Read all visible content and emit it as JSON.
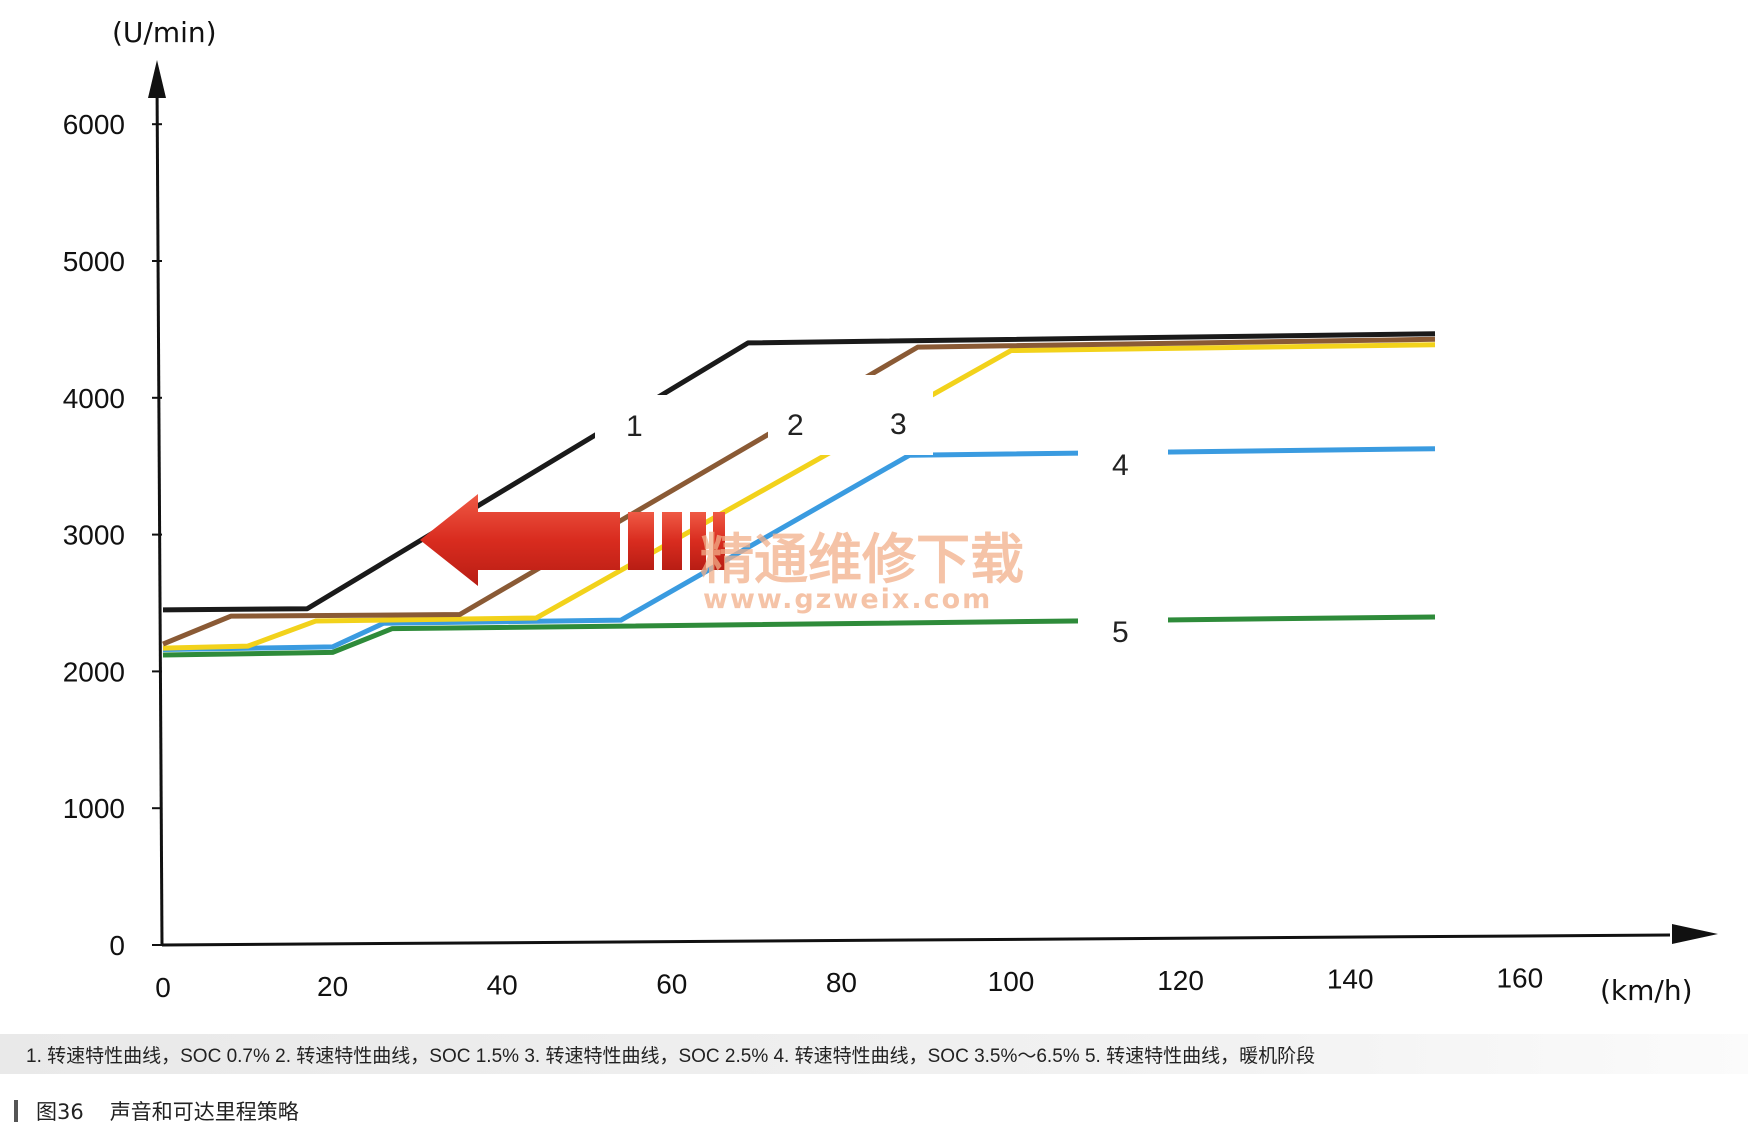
{
  "chart_data": {
    "type": "line",
    "y_unit_label": "(U/min)",
    "x_unit_label": "(km/h)",
    "xlim": [
      0,
      160
    ],
    "ylim": [
      0,
      6000
    ],
    "x_ticks": [
      0,
      20,
      40,
      60,
      80,
      100,
      120,
      140,
      160
    ],
    "y_ticks": [
      0,
      1000,
      2000,
      3000,
      4000,
      5000,
      6000
    ],
    "grid": false,
    "series": [
      {
        "name": "1",
        "color": "#1a1a1a",
        "points": [
          [
            0,
            2450
          ],
          [
            17,
            2450
          ],
          [
            69,
            4370
          ],
          [
            150,
            4400
          ]
        ]
      },
      {
        "name": "2",
        "color": "#8a5a35",
        "points": [
          [
            0,
            2200
          ],
          [
            8,
            2400
          ],
          [
            35,
            2400
          ],
          [
            89,
            4330
          ],
          [
            150,
            4360
          ]
        ]
      },
      {
        "name": "3",
        "color": "#f2d21b",
        "points": [
          [
            0,
            2170
          ],
          [
            10,
            2180
          ],
          [
            18,
            2360
          ],
          [
            44,
            2370
          ],
          [
            100,
            4300
          ],
          [
            150,
            4320
          ]
        ]
      },
      {
        "name": "4",
        "color": "#3a9be0",
        "points": [
          [
            0,
            2160
          ],
          [
            20,
            2170
          ],
          [
            26,
            2340
          ],
          [
            54,
            2350
          ],
          [
            88,
            3540
          ],
          [
            150,
            3560
          ]
        ]
      },
      {
        "name": "5",
        "color": "#2e8b3a",
        "points": [
          [
            0,
            2120
          ],
          [
            20,
            2130
          ],
          [
            27,
            2300
          ],
          [
            150,
            2330
          ]
        ]
      }
    ]
  },
  "legend_text": "1. 转速特性曲线，SOC 0.7% 2. 转速特性曲线，SOC 1.5% 3. 转速特性曲线，SOC 2.5% 4. 转速特性曲线，SOC 3.5%～6.5% 5. 转速特性曲线，暖机阶段",
  "figure": {
    "number": "图36",
    "title": "声音和可达里程策略"
  },
  "watermark": {
    "text": "精通维修下载",
    "url": "www.gzweix.com"
  }
}
